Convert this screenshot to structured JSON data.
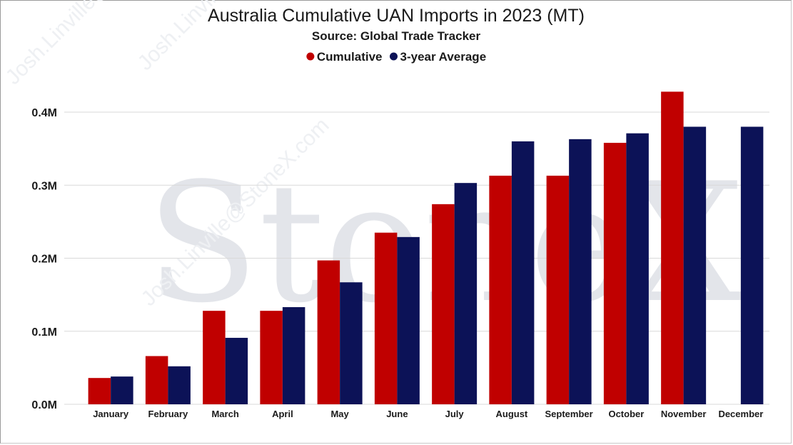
{
  "chart_data": {
    "type": "bar",
    "title": "Australia Cumulative UAN Imports in 2023 (MT)",
    "subtitle": "Source: Global Trade Tracker",
    "xlabel": "",
    "ylabel": "",
    "categories": [
      "January",
      "February",
      "March",
      "April",
      "May",
      "June",
      "July",
      "August",
      "September",
      "October",
      "November",
      "December"
    ],
    "series": [
      {
        "name": "Cumulative",
        "color": "#c00000",
        "values": [
          0.036,
          0.066,
          0.128,
          0.128,
          0.197,
          0.235,
          0.274,
          0.313,
          0.313,
          0.358,
          0.428,
          null
        ]
      },
      {
        "name": "3-year Average",
        "color": "#0c1257",
        "values": [
          0.038,
          0.052,
          0.091,
          0.133,
          0.167,
          0.229,
          0.303,
          0.36,
          0.363,
          0.371,
          0.38,
          0.38
        ]
      }
    ],
    "ylim": [
      0,
      0.4
    ],
    "yticks": [
      {
        "value": 0,
        "label": "0.0M"
      },
      {
        "value": 0.1,
        "label": "0.1M"
      },
      {
        "value": 0.2,
        "label": "0.2M"
      },
      {
        "value": 0.3,
        "label": "0.3M"
      },
      {
        "value": 0.4,
        "label": "0.4M"
      }
    ],
    "grid": true,
    "legend": "top-center"
  },
  "watermark": {
    "brand": "StoneX",
    "text": "Josh.Linville@StoneX.com"
  }
}
